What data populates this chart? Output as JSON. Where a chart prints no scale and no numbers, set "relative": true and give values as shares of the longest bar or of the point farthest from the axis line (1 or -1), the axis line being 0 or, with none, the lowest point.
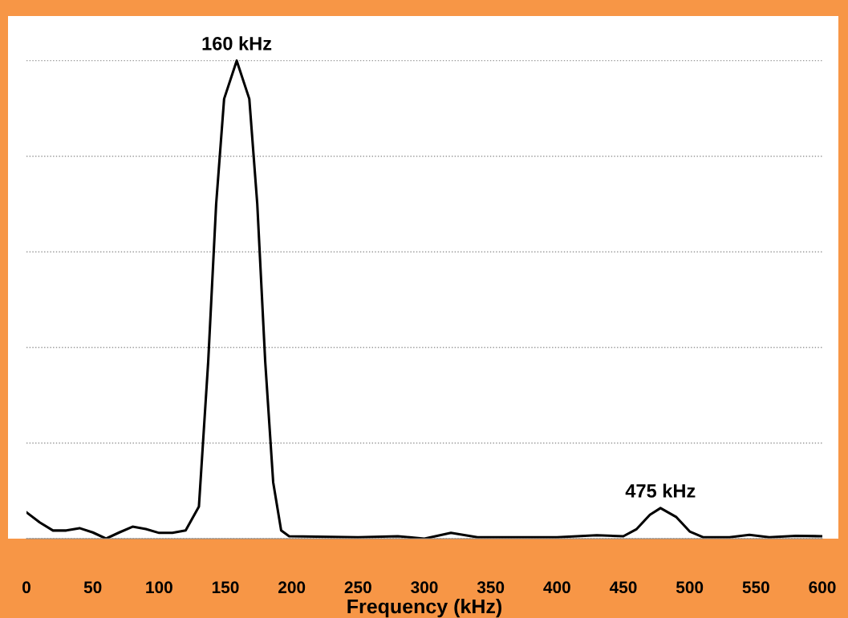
{
  "chart_data": {
    "type": "line",
    "relative": true,
    "xlabel": "Frequency (kHz)",
    "xlim": [
      0,
      600
    ],
    "xticks": [
      0,
      50,
      100,
      150,
      200,
      250,
      300,
      350,
      400,
      450,
      500,
      550,
      600
    ],
    "grid": "y",
    "color": "#000000",
    "x": [
      0,
      10,
      20,
      30,
      40,
      50,
      60,
      70,
      80,
      90,
      100,
      110,
      120,
      130,
      137,
      143,
      149,
      158.5,
      168,
      174,
      180,
      186,
      192,
      198,
      250,
      280,
      300,
      320,
      340,
      400,
      430,
      450,
      460,
      470,
      478,
      490,
      500,
      510,
      530,
      545,
      560,
      580,
      600
    ],
    "values": [
      0.055,
      0.034,
      0.017,
      0.017,
      0.022,
      0.013,
      0,
      0.013,
      0.025,
      0.02,
      0.012,
      0.012,
      0.017,
      0.067,
      0.37,
      0.7,
      0.92,
      1.0,
      0.92,
      0.7,
      0.37,
      0.118,
      0.017,
      0.005,
      0.003,
      0.005,
      0,
      0.012,
      0.003,
      0.003,
      0.007,
      0.005,
      0.02,
      0.05,
      0.064,
      0.045,
      0.015,
      0.003,
      0.003,
      0.008,
      0.003,
      0.006,
      0.005
    ],
    "annotations": [
      {
        "text": "160 kHz",
        "x": 158.5,
        "y": 1.0
      },
      {
        "text": "475 kHz",
        "x": 478,
        "y": 0.064
      }
    ]
  }
}
